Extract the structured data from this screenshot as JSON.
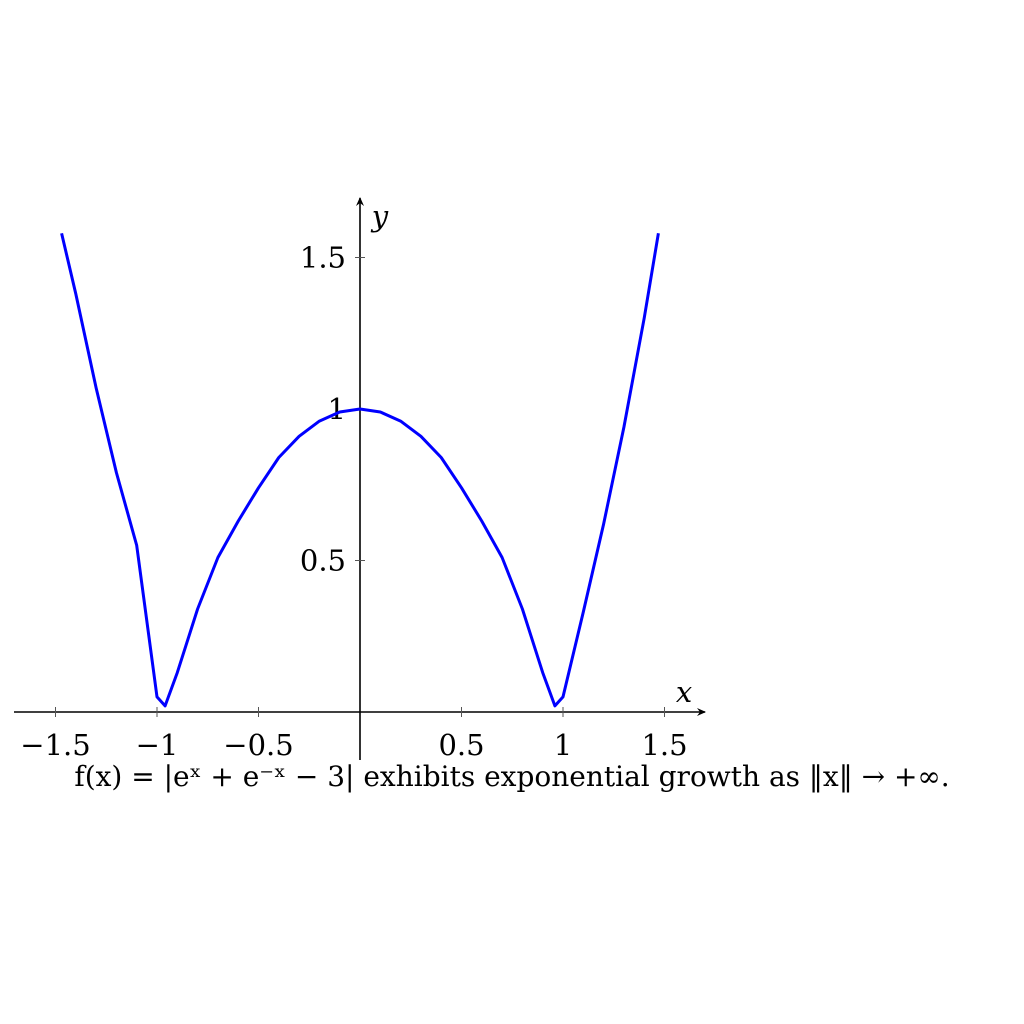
{
  "chart_data": {
    "type": "line",
    "title": "",
    "xlabel": "x",
    "ylabel": "y",
    "xlim": [
      -1.72,
      1.72
    ],
    "ylim": [
      -0.2,
      1.7
    ],
    "x_ticks": [
      -1.5,
      -1,
      -0.5,
      0.5,
      1,
      1.5
    ],
    "x_tick_labels": [
      "−1.5",
      "−1",
      "−0.5",
      "0.5",
      "1",
      "1.5"
    ],
    "y_ticks": [
      0.5,
      1,
      1.5
    ],
    "y_tick_labels": [
      "0.5",
      "1",
      "1.5"
    ],
    "grid": false,
    "series": [
      {
        "color": "#0000ff",
        "x": [
          -1.47,
          -1.4,
          -1.3,
          -1.2,
          -1.1,
          -1.0,
          -0.96,
          -0.9,
          -0.8,
          -0.7,
          -0.6,
          -0.5,
          -0.4,
          -0.3,
          -0.2,
          -0.1,
          0.0,
          0.1,
          0.2,
          0.3,
          0.4,
          0.5,
          0.6,
          0.7,
          0.8,
          0.9,
          0.96,
          1.0,
          1.1,
          1.2,
          1.3,
          1.4,
          1.47
        ],
        "y": [
          1.58,
          1.38,
          1.07,
          0.79,
          0.55,
          0.05,
          0.02,
          0.13,
          0.34,
          0.51,
          0.63,
          0.74,
          0.84,
          0.91,
          0.96,
          0.99,
          1.0,
          0.99,
          0.96,
          0.91,
          0.84,
          0.74,
          0.63,
          0.51,
          0.34,
          0.13,
          0.02,
          0.05,
          0.33,
          0.62,
          0.94,
          1.3,
          1.58
        ]
      }
    ]
  },
  "caption": "f(x) = |eˣ + e⁻ˣ − 3| exhibits exponential growth as ‖x‖ → +∞."
}
